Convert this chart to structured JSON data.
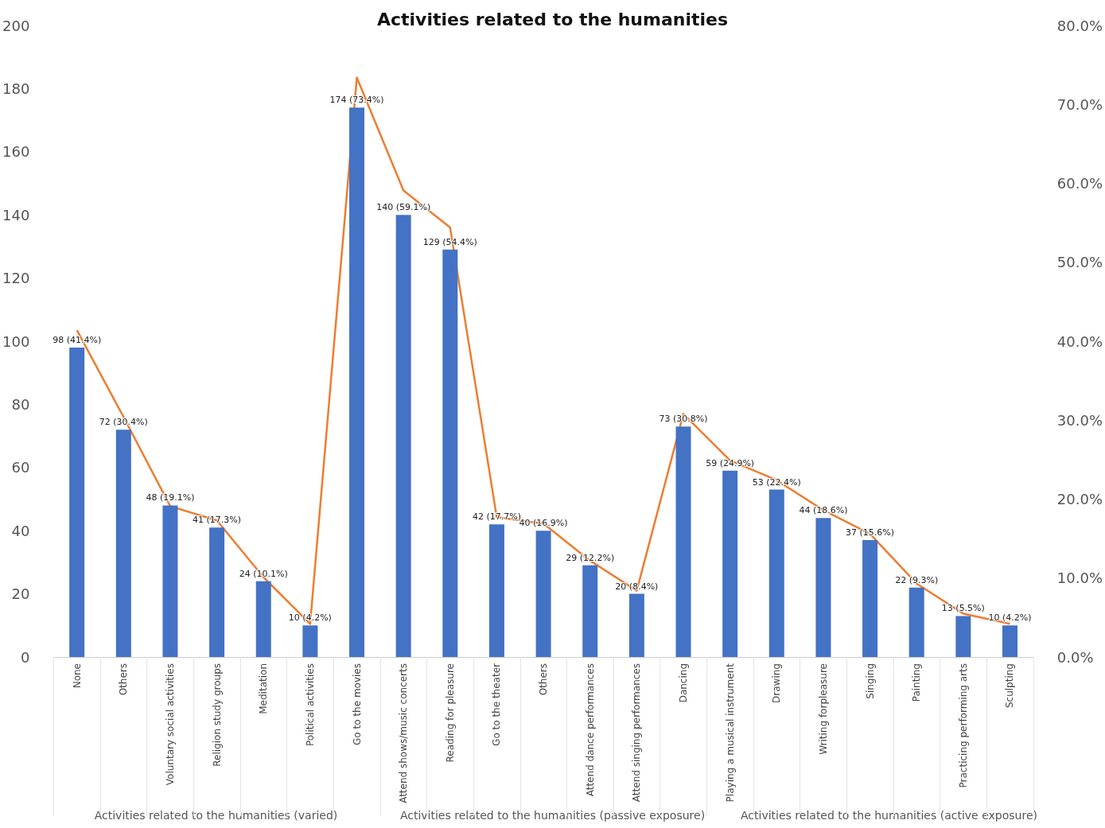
{
  "chart_data": {
    "type": "bar",
    "title": "Activities related to the humanities",
    "categories": [
      "None",
      "Others",
      "Voluntary social activities",
      "Religion study groups",
      "Meditation",
      "Political activities",
      "Go to the movies",
      "Attend shows/music concerts",
      "Reading for pleasure",
      "Go to the theater",
      "Others",
      "Attend dance performances",
      "Attend singing performances",
      "Dancing",
      "Playing a musical instrument",
      "Drawing",
      "Writing forpleasure",
      "Singing",
      "Painting",
      "Practicing performing arts",
      "Sculpting"
    ],
    "series": [
      {
        "color": "#4472c4",
        "values": [
          98,
          72,
          48,
          41,
          24,
          10,
          174,
          140,
          129,
          42,
          40,
          29,
          20,
          73,
          59,
          53,
          44,
          37,
          22,
          13,
          10
        ],
        "value_labels": [
          "98 (41.4%)",
          "72 (30.4%)",
          "48 (19.1%)",
          "41 (17.3%)",
          "24 (10.1%)",
          "10 (4.2%)",
          "174 (73.4%)",
          "140 (59.1%)",
          "129 (54.4%)",
          "42 (17.7%)",
          "40 (16.9%)",
          "29 (12.2%)",
          "20 (8.4%)",
          "73 (30.8%)",
          "59 (24.9%)",
          "53 (22.4%)",
          "44 (18.6%)",
          "37 (15.6%)",
          "22 (9.3%)",
          "13 (5.5%)",
          "10 (4.2%)"
        ]
      },
      {
        "type": "line",
        "axis": "y2",
        "color": "#ed7d31",
        "values": [
          41.4,
          30.4,
          19.1,
          17.3,
          10.1,
          4.2,
          73.4,
          59.1,
          54.4,
          17.7,
          16.9,
          12.2,
          8.4,
          30.8,
          24.9,
          22.4,
          18.6,
          15.6,
          9.3,
          5.5,
          4.2
        ]
      }
    ],
    "ylim": [
      0,
      200
    ],
    "yticks": [
      0,
      20,
      40,
      60,
      80,
      100,
      120,
      140,
      160,
      180,
      200
    ],
    "y2lim": [
      0,
      80
    ],
    "y2ticks": [
      {
        "value": 0,
        "label": "0.0%"
      },
      {
        "value": 10,
        "label": "10.0%"
      },
      {
        "value": 20,
        "label": "20.0%"
      },
      {
        "value": 30,
        "label": "30.0%"
      },
      {
        "value": 40,
        "label": "40.0%"
      },
      {
        "value": 50,
        "label": "50.0%"
      },
      {
        "value": 60,
        "label": "60.0%"
      },
      {
        "value": 70,
        "label": "70.0%"
      },
      {
        "value": 80,
        "label": "80.0%"
      }
    ],
    "grid": false,
    "marker": "none",
    "annotations": [
      "Activities related to the humanities (varied)",
      "Activities related to the humanities (passive exposure)",
      "Activities related to the humanities (active exposure)"
    ]
  }
}
